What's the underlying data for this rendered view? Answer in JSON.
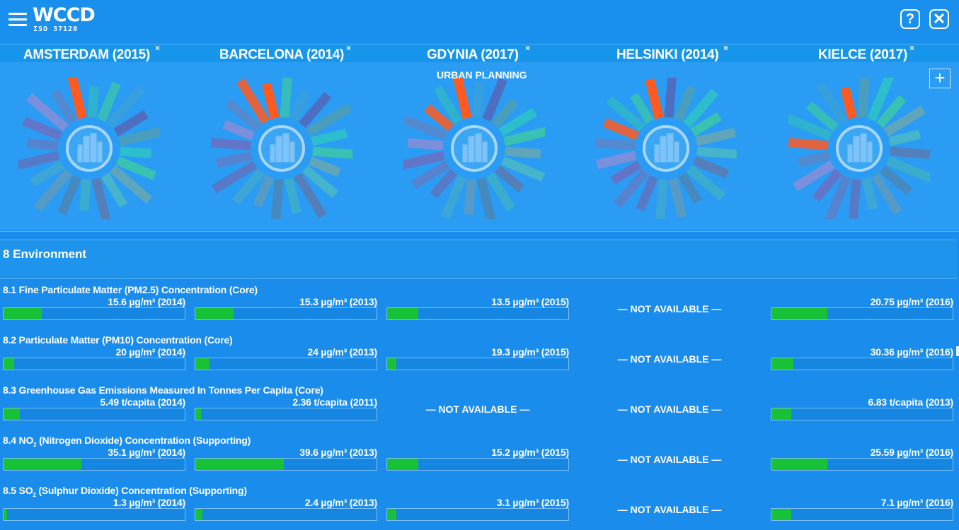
{
  "app": {
    "logo": "WCCD",
    "logo_sub": "ISO 37120",
    "help_label": "?",
    "close_label": "✕",
    "add_label": "+"
  },
  "colors": {
    "background": "#1a8cec",
    "bar_fill": "#18c236",
    "highlight_spoke": "#ff5a1f"
  },
  "cities": [
    {
      "name": "AMSTERDAM (2015)",
      "close": "×"
    },
    {
      "name": "BARCELONA (2014)",
      "close": "×"
    },
    {
      "name": "GDYNIA (2017)",
      "close": "×"
    },
    {
      "name": "HELSINKI (2014)",
      "close": "×"
    },
    {
      "name": "KIELCE (2017)",
      "close": "×"
    }
  ],
  "wheel": {
    "category_label": "URBAN PLANNING",
    "center_icon": "city-buildings-icon"
  },
  "section": {
    "title": "8 Environment"
  },
  "not_available": "— NOT AVAILABLE —",
  "indicators": [
    {
      "title_pre": "8.1 Fine Particulate Matter (PM2.5) Concentration (Core)",
      "sub": "",
      "title_post": "",
      "values": [
        {
          "text": "15.6 µg/m³ (2014)",
          "fill": 0.21
        },
        {
          "text": "15.3 µg/m³ (2013)",
          "fill": 0.21
        },
        {
          "text": "13.5 µg/m³ (2015)",
          "fill": 0.17
        },
        null,
        {
          "text": "20.75 µg/m³ (2016)",
          "fill": 0.31
        }
      ]
    },
    {
      "title_pre": "8.2 Particulate Matter (PM10) Concentration (Core)",
      "sub": "",
      "title_post": "",
      "values": [
        {
          "text": "20 µg/m³ (2014)",
          "fill": 0.06
        },
        {
          "text": "24 µg/m³ (2013)",
          "fill": 0.08
        },
        {
          "text": "19.3 µg/m³ (2015)",
          "fill": 0.05
        },
        null,
        {
          "text": "30.36 µg/m³ (2016)",
          "fill": 0.12
        }
      ]
    },
    {
      "title_pre": "8.3 Greenhouse Gas Emissions Measured In Tonnes Per Capita (Core)",
      "sub": "",
      "title_post": "",
      "values": [
        {
          "text": "5.49 t/capita (2014)",
          "fill": 0.09
        },
        {
          "text": "2.36 t/capita (2011)",
          "fill": 0.03
        },
        null,
        null,
        {
          "text": "6.83 t/capita (2013)",
          "fill": 0.11
        }
      ]
    },
    {
      "title_pre": "8.4 NO",
      "sub": "2",
      "title_post": " (Nitrogen Dioxide) Concentration (Supporting)",
      "values": [
        {
          "text": "35.1 µg/m³ (2014)",
          "fill": 0.43
        },
        {
          "text": "39.6 µg/m³ (2013)",
          "fill": 0.49
        },
        {
          "text": "15.2 µg/m³ (2015)",
          "fill": 0.17
        },
        null,
        {
          "text": "25.59 µg/m³ (2016)",
          "fill": 0.31
        }
      ]
    },
    {
      "title_pre": "8.5 SO",
      "sub": "2",
      "title_post": " (Sulphur Dioxide) Concentration (Supporting)",
      "values": [
        {
          "text": "1.3 µg/m³ (2014)",
          "fill": 0.02
        },
        {
          "text": "2.4 µg/m³ (2013)",
          "fill": 0.04
        },
        {
          "text": "3.1 µg/m³ (2015)",
          "fill": 0.05
        },
        null,
        {
          "text": "7.1 µg/m³ (2016)",
          "fill": 0.11
        }
      ]
    }
  ]
}
